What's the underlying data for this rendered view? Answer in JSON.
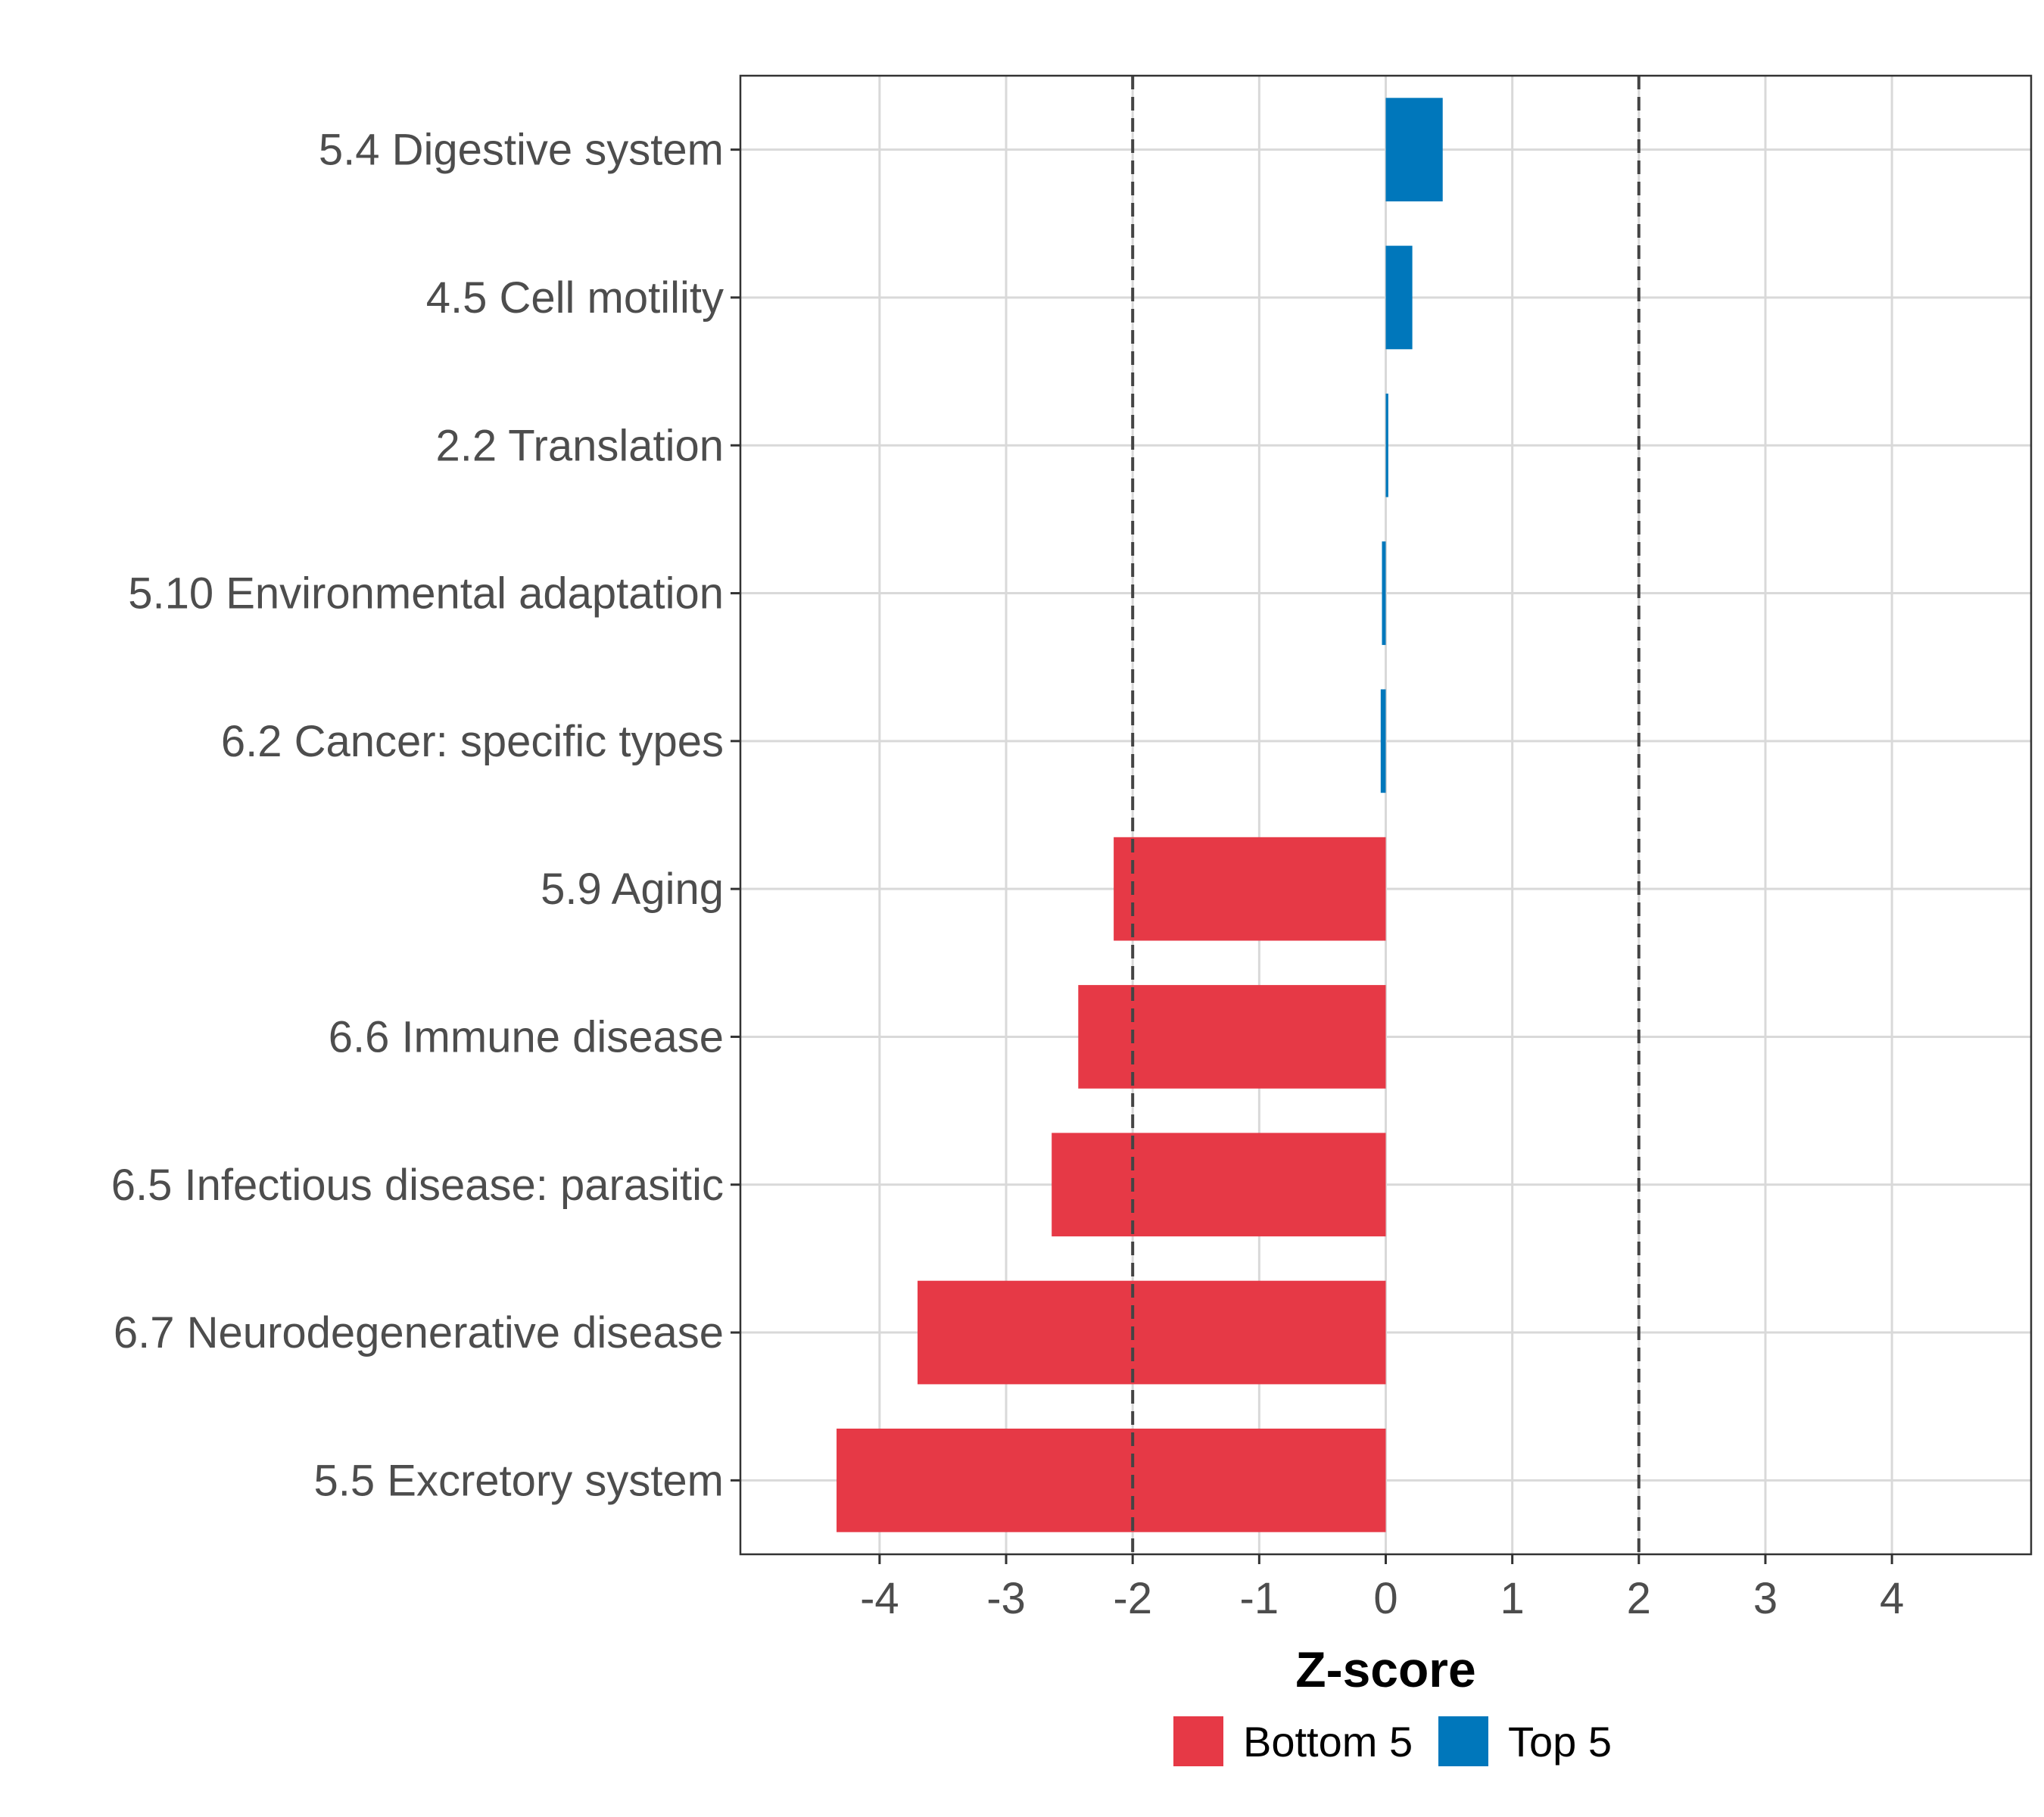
{
  "chart_data": {
    "type": "bar",
    "orientation": "horizontal",
    "title": "",
    "xlabel": "Z-score",
    "ylabel": "",
    "xlim": [
      -5.1,
      5.1
    ],
    "xticks": [
      -4,
      -3,
      -2,
      -1,
      0,
      1,
      2,
      3,
      4
    ],
    "xtick_labels": [
      "-4",
      "-3",
      "-2",
      "-1",
      "0",
      "1",
      "2",
      "3",
      "4"
    ],
    "reference_lines": [
      -2,
      2
    ],
    "grid": true,
    "legend_position": "bottom",
    "colors": {
      "Bottom 5": "#e63946",
      "Top 5": "#0077bb"
    },
    "bars": [
      {
        "label": "5.4 Digestive system",
        "value": 0.45,
        "group": "Top 5"
      },
      {
        "label": "4.5 Cell motility",
        "value": 0.21,
        "group": "Top 5"
      },
      {
        "label": "2.2 Translation",
        "value": 0.02,
        "group": "Top 5"
      },
      {
        "label": "5.10 Environmental adaptation",
        "value": -0.03,
        "group": "Top 5"
      },
      {
        "label": "6.2 Cancer: specific types",
        "value": -0.04,
        "group": "Top 5"
      },
      {
        "label": "5.9 Aging",
        "value": -2.15,
        "group": "Bottom 5"
      },
      {
        "label": "6.6 Immune disease",
        "value": -2.43,
        "group": "Bottom 5"
      },
      {
        "label": "6.5 Infectious disease: parasitic",
        "value": -2.64,
        "group": "Bottom 5"
      },
      {
        "label": "6.7 Neurodegenerative disease",
        "value": -3.7,
        "group": "Bottom 5"
      },
      {
        "label": "5.5 Excretory system",
        "value": -4.34,
        "group": "Bottom 5"
      }
    ],
    "legend": [
      {
        "label": "Bottom 5",
        "group": "Bottom 5"
      },
      {
        "label": "Top 5",
        "group": "Top 5"
      }
    ]
  }
}
